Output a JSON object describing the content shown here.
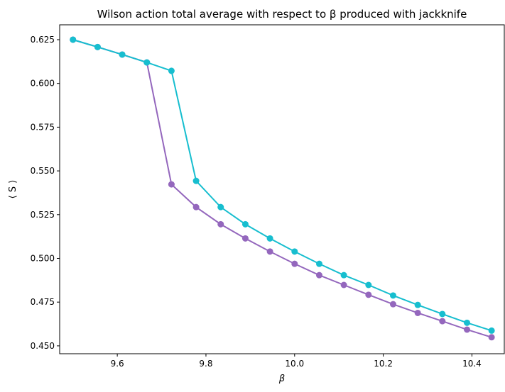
{
  "chart_data": {
    "type": "line",
    "title": "Wilson action total average with respect to β produced with jackknife",
    "xlabel": "β",
    "ylabel": "⟨ S ⟩",
    "xlim": [
      9.47,
      10.473
    ],
    "ylim": [
      0.4455,
      0.6335
    ],
    "xticks": [
      9.6,
      9.8,
      10.0,
      10.2,
      10.4
    ],
    "xtick_labels": [
      "9.6",
      "9.8",
      "10.0",
      "10.2",
      "10.4"
    ],
    "yticks": [
      0.45,
      0.475,
      0.5,
      0.525,
      0.55,
      0.575,
      0.6,
      0.625
    ],
    "ytick_labels": [
      "0.450",
      "0.475",
      "0.500",
      "0.525",
      "0.550",
      "0.575",
      "0.600",
      "0.625"
    ],
    "x": [
      9.5,
      9.5556,
      9.6111,
      9.6667,
      9.7222,
      9.7778,
      9.8333,
      9.8889,
      9.9444,
      10.0,
      10.0556,
      10.1111,
      10.1667,
      10.2222,
      10.2778,
      10.3333,
      10.3889,
      10.4444
    ],
    "series": [
      {
        "color": "#9467bd",
        "values": [
          0.625,
          0.6208,
          0.6165,
          0.612,
          0.5423,
          0.5293,
          0.5195,
          0.5114,
          0.5039,
          0.4969,
          0.4904,
          0.4848,
          0.4792,
          0.4738,
          0.4688,
          0.4641,
          0.4593,
          0.4549
        ]
      },
      {
        "color": "#17becf",
        "values": [
          0.625,
          0.6208,
          0.6165,
          0.612,
          0.6072,
          0.5443,
          0.5293,
          0.5195,
          0.5114,
          0.5039,
          0.4969,
          0.4904,
          0.4848,
          0.4788,
          0.4734,
          0.4682,
          0.4632,
          0.4587
        ]
      }
    ]
  }
}
